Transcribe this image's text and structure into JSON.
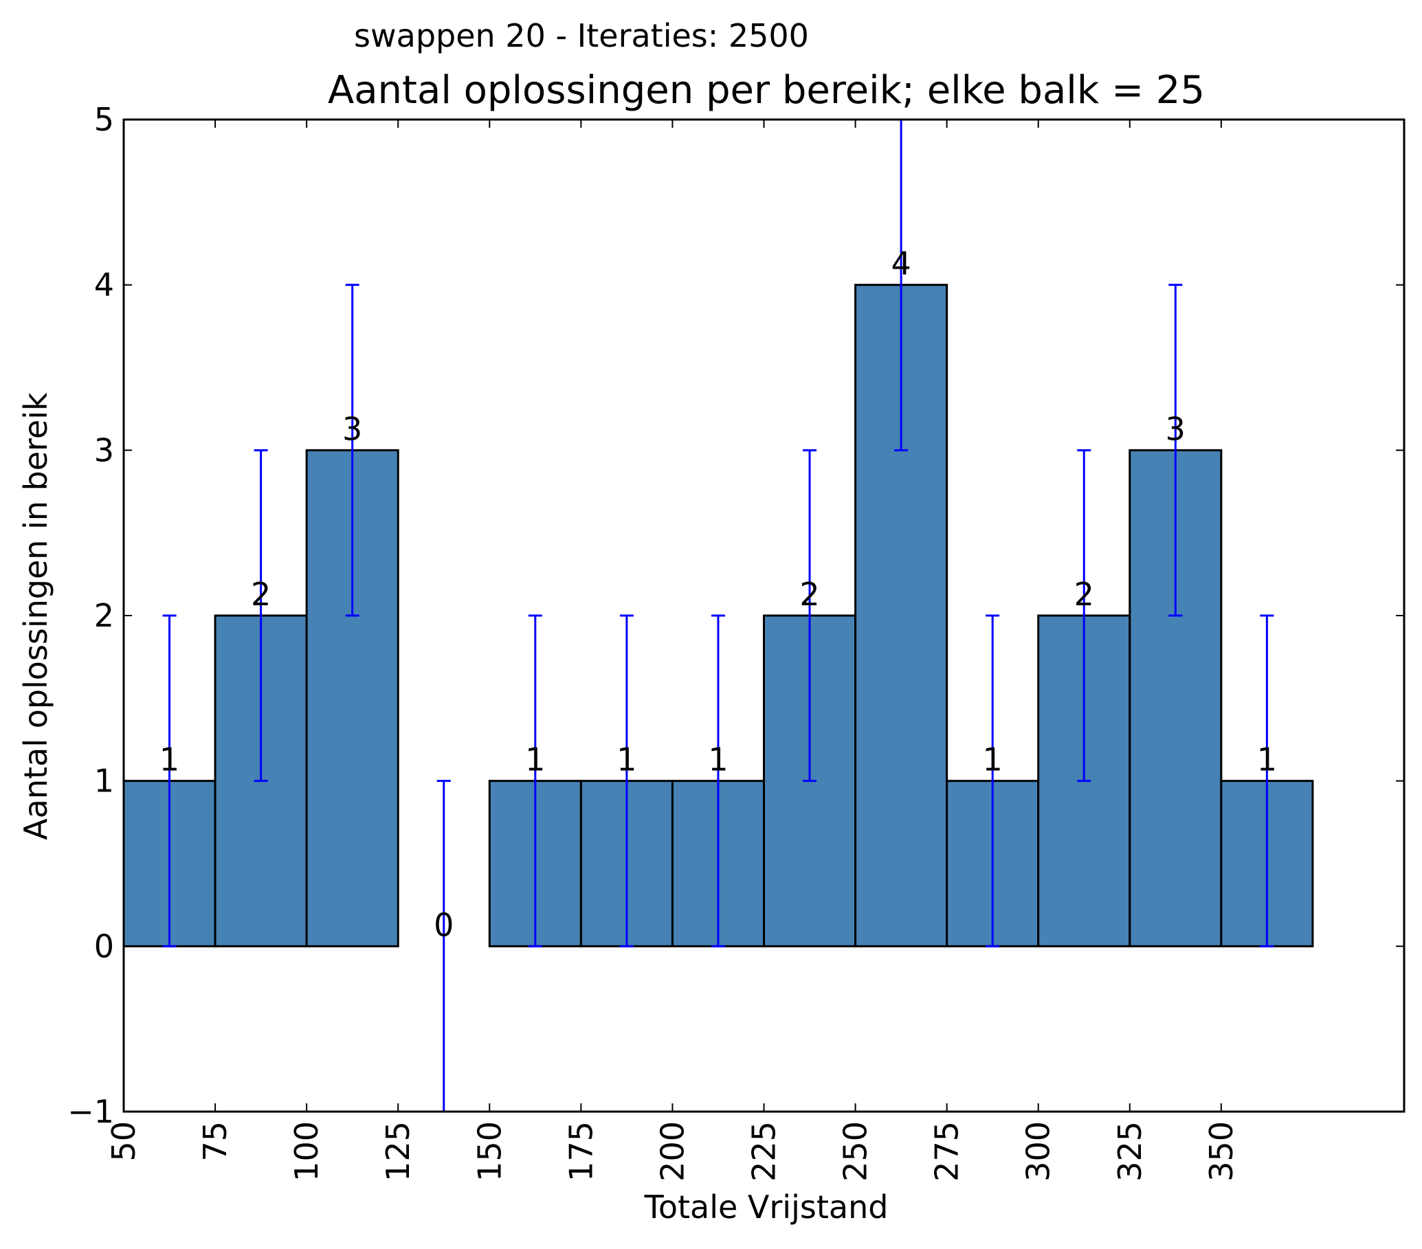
{
  "chart_data": {
    "type": "bar",
    "suptitle": "swappen 20 - Iteraties: 2500",
    "title": "Aantal oplossingen per bereik; elke balk = 25",
    "xlabel": "Totale Vrijstand",
    "ylabel": "Aantal oplossingen in bereik",
    "bin_width": 25,
    "bin_starts": [
      50,
      75,
      100,
      125,
      150,
      175,
      200,
      225,
      250,
      275,
      300,
      325,
      350
    ],
    "values": [
      1,
      2,
      3,
      0,
      1,
      1,
      1,
      2,
      4,
      1,
      2,
      3,
      1
    ],
    "value_labels": [
      "1",
      "2",
      "3",
      "0",
      "1",
      "1",
      "1",
      "2",
      "4",
      "1",
      "2",
      "3",
      "1"
    ],
    "error": [
      1,
      1,
      1,
      1,
      1,
      1,
      1,
      1,
      1,
      1,
      1,
      1,
      1
    ],
    "xlim": [
      50,
      400
    ],
    "ylim": [
      -1,
      5
    ],
    "x_ticks": [
      "50",
      "75",
      "100",
      "125",
      "150",
      "175",
      "200",
      "225",
      "250",
      "275",
      "300",
      "325",
      "350"
    ],
    "x_tick_values": [
      50,
      75,
      100,
      125,
      150,
      175,
      200,
      225,
      250,
      275,
      300,
      325,
      350
    ],
    "y_ticks": [
      "−1",
      "0",
      "1",
      "2",
      "3",
      "4",
      "5"
    ],
    "y_tick_values": [
      -1,
      0,
      1,
      2,
      3,
      4,
      5
    ],
    "colors": {
      "bar": "#4682b4",
      "error": "#0000ff",
      "edge": "#000000"
    },
    "grid": false
  }
}
